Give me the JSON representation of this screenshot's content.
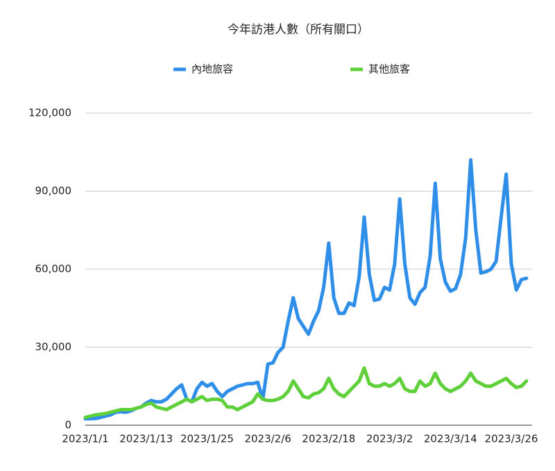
{
  "chart_data": {
    "type": "line",
    "title": "今年訪港人數（所有關口）",
    "categories": [
      "2023/1/1",
      null,
      null,
      null,
      null,
      null,
      null,
      null,
      null,
      null,
      null,
      null,
      "2023/1/13",
      null,
      null,
      null,
      null,
      null,
      null,
      null,
      null,
      null,
      null,
      null,
      "2023/1/25",
      null,
      null,
      null,
      null,
      null,
      null,
      null,
      null,
      null,
      null,
      null,
      "2023/2/6",
      null,
      null,
      null,
      null,
      null,
      null,
      null,
      null,
      null,
      null,
      null,
      "2023/2/18",
      null,
      null,
      null,
      null,
      null,
      null,
      null,
      null,
      null,
      null,
      null,
      "2023/3/2",
      null,
      null,
      null,
      null,
      null,
      null,
      null,
      null,
      null,
      null,
      null,
      "2023/3/14",
      null,
      null,
      null,
      null,
      null,
      null,
      null,
      null,
      null,
      null,
      null,
      "2023/3/26",
      null,
      null,
      null
    ],
    "series": [
      {
        "name": "內地旅容",
        "color": "#2e8ee8",
        "values": [
          2500,
          2500,
          2600,
          3000,
          3500,
          4000,
          5000,
          5200,
          5000,
          5500,
          6500,
          7000,
          8500,
          9500,
          9000,
          9000,
          10000,
          12000,
          14000,
          15500,
          10000,
          9000,
          14000,
          16500,
          15000,
          16000,
          13000,
          11000,
          13000,
          14000,
          15000,
          15500,
          16000,
          16000,
          16500,
          10000,
          23500,
          24000,
          28000,
          30000,
          40000,
          49000,
          41000,
          38000,
          35000,
          40000,
          44000,
          53000,
          70000,
          49000,
          43000,
          43000,
          47000,
          46000,
          57000,
          80000,
          58000,
          48000,
          48500,
          53000,
          52000,
          62000,
          87000,
          62000,
          49000,
          46500,
          51000,
          53000,
          65000,
          93000,
          64000,
          55000,
          51500,
          52500,
          58000,
          72000,
          102000,
          75000,
          58500,
          59000,
          60000,
          63000,
          80000,
          96500,
          62000,
          52000,
          56000,
          56500
        ]
      },
      {
        "name": "其他旅客",
        "color": "#5fcf3a",
        "values": [
          3000,
          3500,
          4000,
          4200,
          4500,
          5000,
          5500,
          6000,
          6000,
          6000,
          6500,
          7000,
          8000,
          8500,
          7000,
          6500,
          6000,
          7000,
          8000,
          9000,
          10000,
          9000,
          10000,
          11000,
          9500,
          10000,
          10000,
          9500,
          7000,
          7000,
          6000,
          7000,
          8000,
          9000,
          12000,
          10000,
          9500,
          9500,
          10000,
          11000,
          13000,
          17000,
          14000,
          11000,
          10500,
          12000,
          12500,
          14000,
          18000,
          14000,
          12000,
          11000,
          13000,
          15000,
          17000,
          22000,
          16000,
          15000,
          15000,
          16000,
          15000,
          16000,
          18000,
          14000,
          13000,
          13000,
          17000,
          15000,
          16000,
          20000,
          16000,
          14000,
          13000,
          14000,
          15000,
          17000,
          20000,
          17000,
          16000,
          15000,
          15000,
          16000,
          17000,
          18000,
          16000,
          14500,
          15000,
          17000
        ]
      }
    ],
    "ylim": [
      0,
      120000
    ],
    "yticks": [
      0,
      {
        "value": 30000,
        "label": "30,000"
      },
      {
        "value": 60000,
        "label": "60,000"
      },
      {
        "value": 90000,
        "label": "90,000"
      },
      {
        "value": 120000,
        "label": "120,000"
      }
    ],
    "grid": true
  }
}
